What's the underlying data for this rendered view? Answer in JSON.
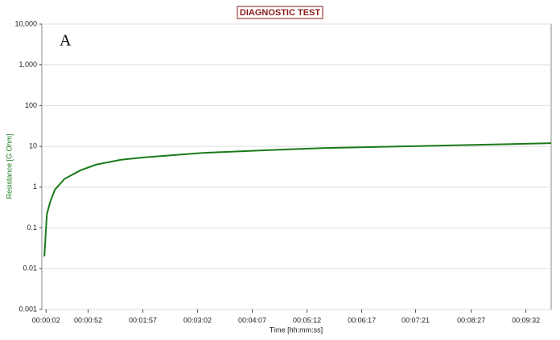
{
  "chart_data": {
    "type": "line",
    "title": "DIAGNOSTIC TEST",
    "annotation": "A",
    "x_label": "Time  [hh:mm:ss]",
    "y_label": "Resistance [G Ohm]",
    "x": [
      0,
      3,
      7,
      12.5,
      24,
      43,
      62,
      91,
      119,
      186,
      253,
      330,
      425,
      521,
      602
    ],
    "series": [
      {
        "name": "Resistance",
        "color": "#1a7a1a",
        "values": [
          0.02,
          0.22,
          0.44,
          0.87,
          1.6,
          2.6,
          3.6,
          4.7,
          5.4,
          6.9,
          7.9,
          9.1,
          10,
          11,
          12
        ]
      }
    ],
    "xlim": [
      -3,
      602
    ],
    "xticks": [
      {
        "value": 2,
        "label": "00:00:02"
      },
      {
        "value": 52,
        "label": "00:00:52"
      },
      {
        "value": 117,
        "label": "00:01:57"
      },
      {
        "value": 182,
        "label": "00:03:02"
      },
      {
        "value": 247,
        "label": "00:04:07"
      },
      {
        "value": 312,
        "label": "00:05:12"
      },
      {
        "value": 377,
        "label": "00:06:17"
      },
      {
        "value": 441,
        "label": "00:07:21"
      },
      {
        "value": 507,
        "label": "00:08:27"
      },
      {
        "value": 572,
        "label": "00:09:32"
      }
    ],
    "ylim": [
      0.001,
      10000
    ],
    "yticks": [
      0.001,
      0.01,
      0.1,
      1,
      10,
      100,
      {
        "value": 1000,
        "label": "1,000"
      },
      {
        "value": 10000,
        "label": "10,000"
      }
    ],
    "y_scale": "log",
    "grid": true
  }
}
